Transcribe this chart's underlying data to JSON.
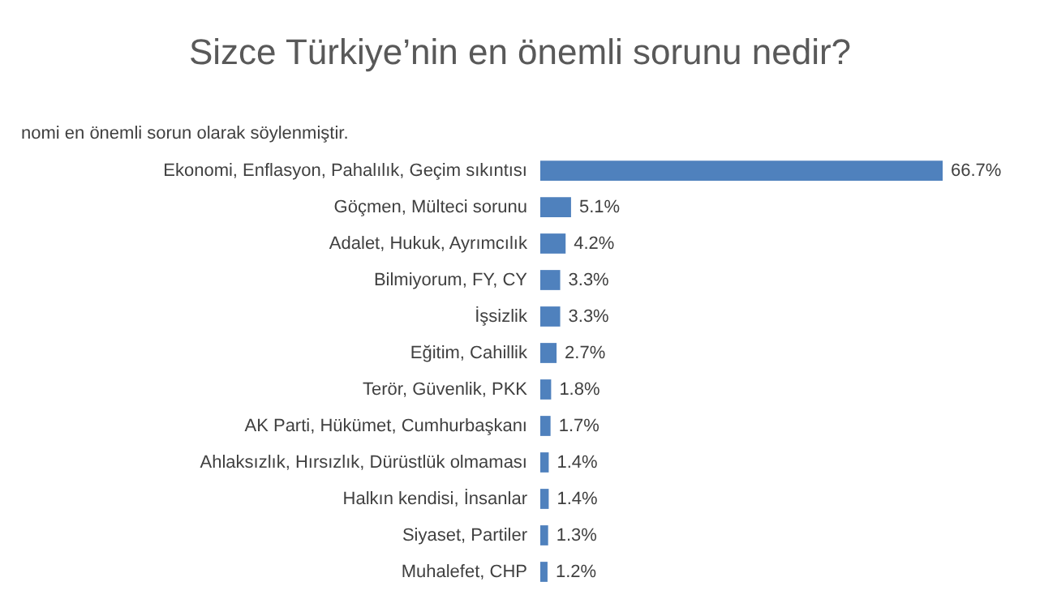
{
  "chart_data": {
    "type": "bar",
    "orientation": "horizontal",
    "title": "Sizce Türkiye’nin en önemli sorunu nedir?",
    "subtitle": "nomi en önemli sorun olarak söylenmiştir.",
    "categories": [
      "Ekonomi, Enflasyon, Pahalılık, Geçim sıkıntısı",
      "Göçmen, Mülteci sorunu",
      "Adalet, Hukuk, Ayrımcılık",
      "Bilmiyorum, FY, CY",
      "İşsizlik",
      "Eğitim, Cahillik",
      "Terör, Güvenlik, PKK",
      "AK Parti, Hükümet, Cumhurbaşkanı",
      "Ahlaksızlık, Hırsızlık, Dürüstlük olmaması",
      "Halkın kendisi, İnsanlar",
      "Siyaset, Partiler",
      "Muhalefet, CHP"
    ],
    "values": [
      66.7,
      5.1,
      4.2,
      3.3,
      3.3,
      2.7,
      1.8,
      1.7,
      1.4,
      1.4,
      1.3,
      1.2
    ],
    "value_labels": [
      "66.7%",
      "5.1%",
      "4.2%",
      "3.3%",
      "3.3%",
      "2.7%",
      "1.8%",
      "1.7%",
      "1.4%",
      "1.4%",
      "1.3%",
      "1.2%"
    ],
    "color": "#4f81bd"
  }
}
